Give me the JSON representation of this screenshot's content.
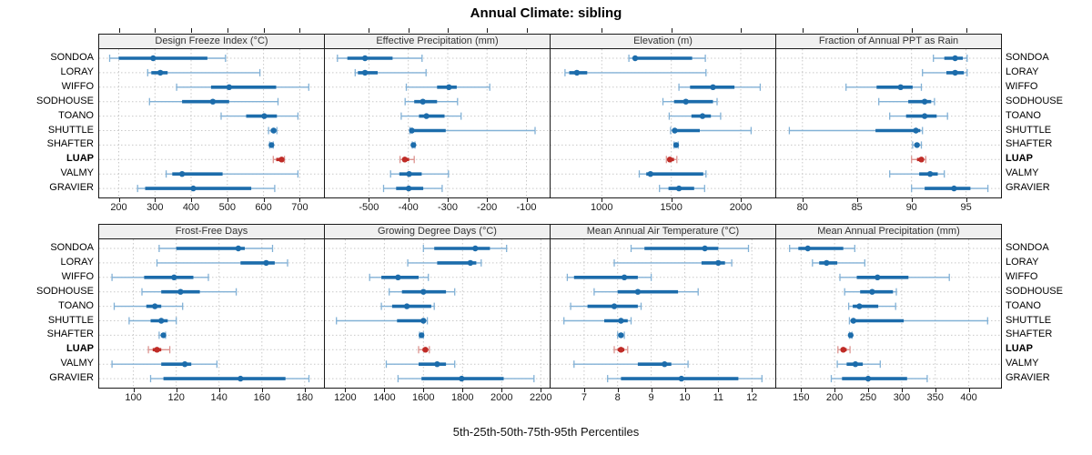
{
  "title": "Annual Climate: sibling",
  "caption": "5th-25th-50th-75th-95th Percentiles",
  "sites": [
    "SONDOA",
    "LORAY",
    "WIFFO",
    "SODHOUSE",
    "TOANO",
    "SHUTTLE",
    "SHAFTER",
    "LUAP",
    "VALMY",
    "GRAVIER"
  ],
  "highlight_site": "LUAP",
  "percentiles": [
    5,
    25,
    50,
    75,
    95
  ],
  "colors": {
    "series": "#1c6cab",
    "series_light": "#82b1d6",
    "highlight": "#bf2b26",
    "highlight_light": "#dc9490",
    "strip_bg": "#f0f0f0",
    "grid": "#c9c9c9",
    "border": "#1a1a1a"
  },
  "chart_data": [
    {
      "type": "interval-dotplot",
      "title": "Design Freeze Index (°C)",
      "xlim": [
        146,
        767
      ],
      "ticks": [
        200,
        300,
        400,
        500,
        600,
        700
      ],
      "values": {
        "SONDOA": [
          175,
          200,
          295,
          445,
          495
        ],
        "LORAY": [
          280,
          290,
          315,
          335,
          590
        ],
        "WIFFO": [
          360,
          455,
          505,
          635,
          725
        ],
        "SODHOUSE": [
          285,
          375,
          460,
          505,
          640
        ],
        "TOANO": [
          483,
          552,
          602,
          637,
          695
        ],
        "SHUTTLE": [
          614,
          620,
          628,
          633,
          637
        ],
        "SHAFTER": [
          617,
          620,
          622,
          625,
          627
        ],
        "LUAP": [
          627,
          635,
          650,
          655,
          658
        ],
        "VALMY": [
          331,
          348,
          375,
          487,
          695
        ],
        "GRAVIER": [
          252,
          273,
          406,
          566,
          631
        ]
      }
    },
    {
      "type": "interval-dotplot",
      "title": "Effective Precipitation (mm)",
      "xlim": [
        -612,
        -41
      ],
      "ticks": [
        -500,
        -400,
        -300,
        -200,
        -100
      ],
      "values": {
        "SONDOA": [
          -580,
          -555,
          -510,
          -440,
          -365
        ],
        "LORAY": [
          -535,
          -528,
          -510,
          -478,
          -355
        ],
        "WIFFO": [
          -405,
          -327,
          -297,
          -277,
          -193
        ],
        "SODHOUSE": [
          -408,
          -385,
          -363,
          -327,
          -275
        ],
        "TOANO": [
          -418,
          -373,
          -354,
          -308,
          -266
        ],
        "SHUTTLE": [
          -396,
          -394,
          -391,
          -305,
          -78
        ],
        "SHAFTER": [
          -390,
          -388,
          -387,
          -385,
          -383
        ],
        "LUAP": [
          -421,
          -414,
          -409,
          -398,
          -385
        ],
        "VALMY": [
          -445,
          -423,
          -398,
          -366,
          -298
        ],
        "GRAVIER": [
          -463,
          -431,
          -399,
          -362,
          -314
        ]
      }
    },
    {
      "type": "interval-dotplot",
      "title": "Elevation (m)",
      "xlim": [
        631,
        2249
      ],
      "ticks": [
        1000,
        1500,
        2000
      ],
      "values": {
        "SONDOA": [
          1195,
          1225,
          1240,
          1650,
          1745
        ],
        "LORAY": [
          735,
          765,
          820,
          895,
          1750
        ],
        "WIFFO": [
          1555,
          1635,
          1800,
          1955,
          2140
        ],
        "SODHOUSE": [
          1440,
          1520,
          1605,
          1800,
          1830
        ],
        "TOANO": [
          1485,
          1645,
          1725,
          1785,
          1855
        ],
        "SHUTTLE": [
          1495,
          1510,
          1525,
          1705,
          2075
        ],
        "SHAFTER": [
          1520,
          1528,
          1535,
          1542,
          1550
        ],
        "LUAP": [
          1465,
          1480,
          1490,
          1520,
          1540
        ],
        "VALMY": [
          1270,
          1320,
          1350,
          1730,
          1750
        ],
        "GRAVIER": [
          1415,
          1480,
          1555,
          1665,
          1740
        ]
      }
    },
    {
      "type": "interval-dotplot",
      "title": "Fraction of Annual PPT as Rain",
      "xlim": [
        77.6,
        98.2
      ],
      "ticks": [
        80,
        85,
        90,
        95
      ],
      "values": {
        "SONDOA": [
          92.0,
          93.0,
          94.0,
          94.7,
          95.1
        ],
        "LORAY": [
          91.0,
          93.2,
          94.0,
          94.8,
          95.1
        ],
        "WIFFO": [
          84.0,
          86.8,
          89.0,
          90.1,
          90.9
        ],
        "SODHOUSE": [
          87.0,
          89.7,
          91.2,
          91.8,
          92.1
        ],
        "TOANO": [
          88.0,
          89.5,
          91.2,
          92.3,
          93.3
        ],
        "SHUTTLE": [
          78.8,
          86.7,
          90.4,
          90.8,
          91.0
        ],
        "SHAFTER": [
          90.1,
          90.3,
          90.5,
          90.7,
          90.9
        ],
        "LUAP": [
          90.0,
          90.5,
          90.9,
          91.1,
          91.3
        ],
        "VALMY": [
          88.0,
          90.7,
          91.7,
          92.4,
          93.0
        ],
        "GRAVIER": [
          90.0,
          91.2,
          93.9,
          95.4,
          97.0
        ]
      }
    },
    {
      "type": "interval-dotplot",
      "title": "Frost-Free Days",
      "xlim": [
        84,
        189
      ],
      "ticks": [
        100,
        120,
        140,
        160,
        180
      ],
      "values": {
        "SONDOA": [
          112,
          120,
          149,
          152,
          165
        ],
        "LORAY": [
          111,
          150,
          162,
          166,
          172
        ],
        "WIFFO": [
          90,
          105,
          119,
          128,
          135
        ],
        "SODHOUSE": [
          104,
          113,
          122,
          131,
          148
        ],
        "TOANO": [
          91,
          106,
          110,
          113,
          123
        ],
        "SHUTTLE": [
          98,
          108,
          113,
          116,
          120
        ],
        "SHAFTER": [
          112,
          113,
          114,
          114.5,
          115
        ],
        "LUAP": [
          107,
          109,
          111,
          113,
          117
        ],
        "VALMY": [
          90,
          113,
          124,
          127,
          139
        ],
        "GRAVIER": [
          108,
          114,
          150,
          171,
          182
        ]
      }
    },
    {
      "type": "interval-dotplot",
      "title": "Growing Degree Days (°C)",
      "xlim": [
        1096,
        2245
      ],
      "ticks": [
        1200,
        1400,
        1600,
        1800,
        2000,
        2200
      ],
      "values": {
        "SONDOA": [
          1600,
          1655,
          1865,
          1940,
          2025
        ],
        "LORAY": [
          1520,
          1670,
          1840,
          1870,
          1895
        ],
        "WIFFO": [
          1325,
          1385,
          1470,
          1575,
          1625
        ],
        "SODHOUSE": [
          1425,
          1490,
          1600,
          1715,
          1760
        ],
        "TOANO": [
          1385,
          1440,
          1515,
          1640,
          1655
        ],
        "SHUTTLE": [
          1155,
          1465,
          1600,
          1610,
          1620
        ],
        "SHAFTER": [
          1580,
          1585,
          1590,
          1595,
          1600
        ],
        "LUAP": [
          1575,
          1595,
          1610,
          1620,
          1630
        ],
        "VALMY": [
          1410,
          1575,
          1670,
          1715,
          1760
        ],
        "GRAVIER": [
          1470,
          1590,
          1795,
          2010,
          2165
        ]
      }
    },
    {
      "type": "interval-dotplot",
      "title": "Mean Annual Air Temperature (°C)",
      "xlim": [
        6.0,
        12.7
      ],
      "ticks": [
        7,
        8,
        9,
        10,
        11,
        12
      ],
      "values": {
        "SONDOA": [
          8.4,
          8.8,
          10.6,
          11.0,
          11.9
        ],
        "LORAY": [
          7.9,
          10.5,
          11.0,
          11.2,
          11.4
        ],
        "WIFFO": [
          6.5,
          6.7,
          8.2,
          8.6,
          9.0
        ],
        "SODHOUSE": [
          7.3,
          8.0,
          8.6,
          9.8,
          10.4
        ],
        "TOANO": [
          6.6,
          7.1,
          7.9,
          8.6,
          8.7
        ],
        "SHUTTLE": [
          6.4,
          7.6,
          8.1,
          8.3,
          8.4
        ],
        "SHAFTER": [
          8.0,
          8.05,
          8.1,
          8.15,
          8.2
        ],
        "LUAP": [
          7.9,
          8.0,
          8.1,
          8.2,
          8.3
        ],
        "VALMY": [
          6.7,
          8.6,
          9.4,
          9.6,
          10.1
        ],
        "GRAVIER": [
          7.7,
          8.1,
          9.9,
          11.6,
          12.3
        ]
      }
    },
    {
      "type": "interval-dotplot",
      "title": "Mean Annual Precipitation (mm)",
      "xlim": [
        113,
        448
      ],
      "ticks": [
        150,
        200,
        250,
        300,
        350,
        400
      ],
      "values": {
        "SONDOA": [
          133,
          146,
          160,
          213,
          230
        ],
        "LORAY": [
          167,
          177,
          188,
          204,
          245
        ],
        "WIFFO": [
          208,
          233,
          264,
          310,
          371
        ],
        "SODHOUSE": [
          215,
          238,
          256,
          287,
          292
        ],
        "TOANO": [
          221,
          227,
          237,
          265,
          291
        ],
        "SHUTTLE": [
          222,
          224,
          228,
          303,
          428
        ],
        "SHAFTER": [
          222,
          223,
          224,
          225,
          226
        ],
        "LUAP": [
          205,
          209,
          213,
          218,
          223
        ],
        "VALMY": [
          204,
          218,
          231,
          242,
          268
        ],
        "GRAVIER": [
          195,
          211,
          250,
          308,
          338
        ]
      }
    }
  ]
}
